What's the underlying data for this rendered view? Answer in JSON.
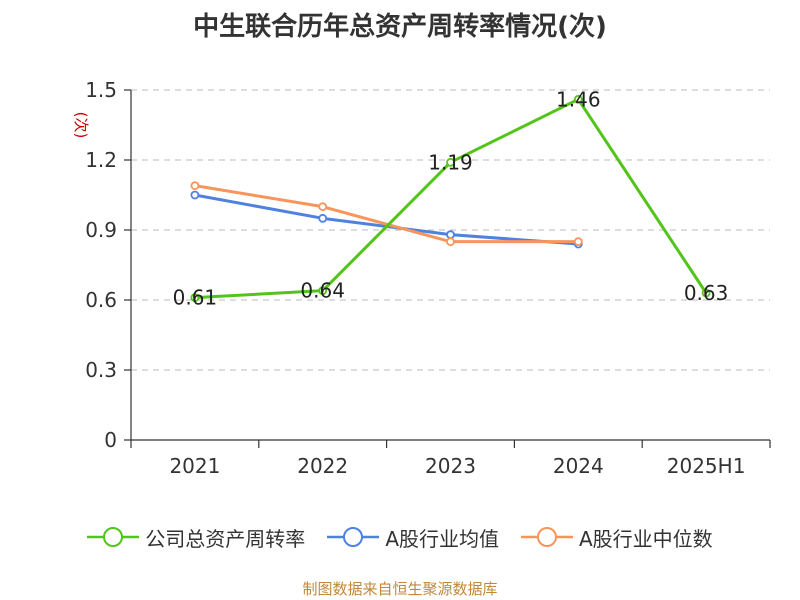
{
  "chart_data": {
    "type": "line",
    "title": "中生联合历年总资产周转率情况(次)",
    "ylabel": "(次)",
    "categories": [
      "2021",
      "2022",
      "2023",
      "2024",
      "2025H1"
    ],
    "y_ticks": [
      "0",
      "0.3",
      "0.6",
      "0.9",
      "1.2",
      "1.5"
    ],
    "ylim": [
      0,
      1.5
    ],
    "grid": "horizontal dashed",
    "legend_position": "bottom",
    "series": [
      {
        "name": "公司总资产周转率",
        "color": "#52c41a",
        "values": [
          0.61,
          0.64,
          1.19,
          1.46,
          0.63
        ],
        "labels": [
          "0.61",
          "0.64",
          "1.19",
          "1.46",
          "0.63"
        ]
      },
      {
        "name": "A股行业均值",
        "color": "#4f81e0",
        "values": [
          1.05,
          0.95,
          0.88,
          0.84,
          null
        ]
      },
      {
        "name": "A股行业中位数",
        "color": "#f7955b",
        "values": [
          1.09,
          1.0,
          0.85,
          0.85,
          null
        ]
      }
    ]
  },
  "ylabel_color": "#cc0000",
  "source": "制图数据来自恒生聚源数据库"
}
